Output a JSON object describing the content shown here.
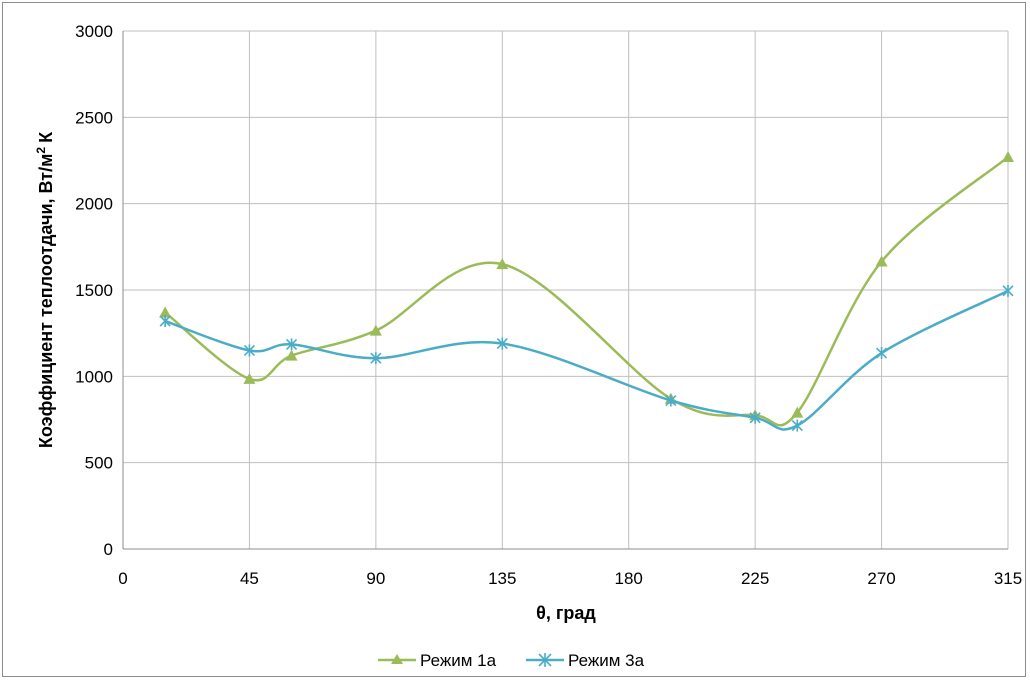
{
  "chart_data": {
    "type": "line",
    "title": "",
    "xlabel": "θ, град",
    "ylabel": {
      "main": "Коэффициент теплоотдачи, Вт/м",
      "sup": "2",
      "tail": "К"
    },
    "xlim": [
      0,
      315
    ],
    "ylim": [
      0,
      3000
    ],
    "x_ticks": [
      0,
      45,
      90,
      135,
      180,
      225,
      270,
      315
    ],
    "y_ticks": [
      0,
      500,
      1000,
      1500,
      2000,
      2500,
      3000
    ],
    "grid": true,
    "legend_position": "bottom",
    "smoothed": true,
    "series": [
      {
        "name": "Режим 1а",
        "color": "#9bbb59",
        "marker": "triangle",
        "x": [
          15,
          45,
          60,
          90,
          135,
          195,
          225,
          240,
          270,
          315
        ],
        "y": [
          1370,
          985,
          1120,
          1265,
          1650,
          870,
          775,
          790,
          1665,
          2270
        ]
      },
      {
        "name": "Режим 3а",
        "color": "#4bacc6",
        "marker": "asterisk",
        "x": [
          15,
          45,
          60,
          90,
          135,
          195,
          225,
          240,
          270,
          315
        ],
        "y": [
          1320,
          1150,
          1185,
          1105,
          1190,
          860,
          760,
          715,
          1135,
          1495
        ]
      }
    ]
  }
}
